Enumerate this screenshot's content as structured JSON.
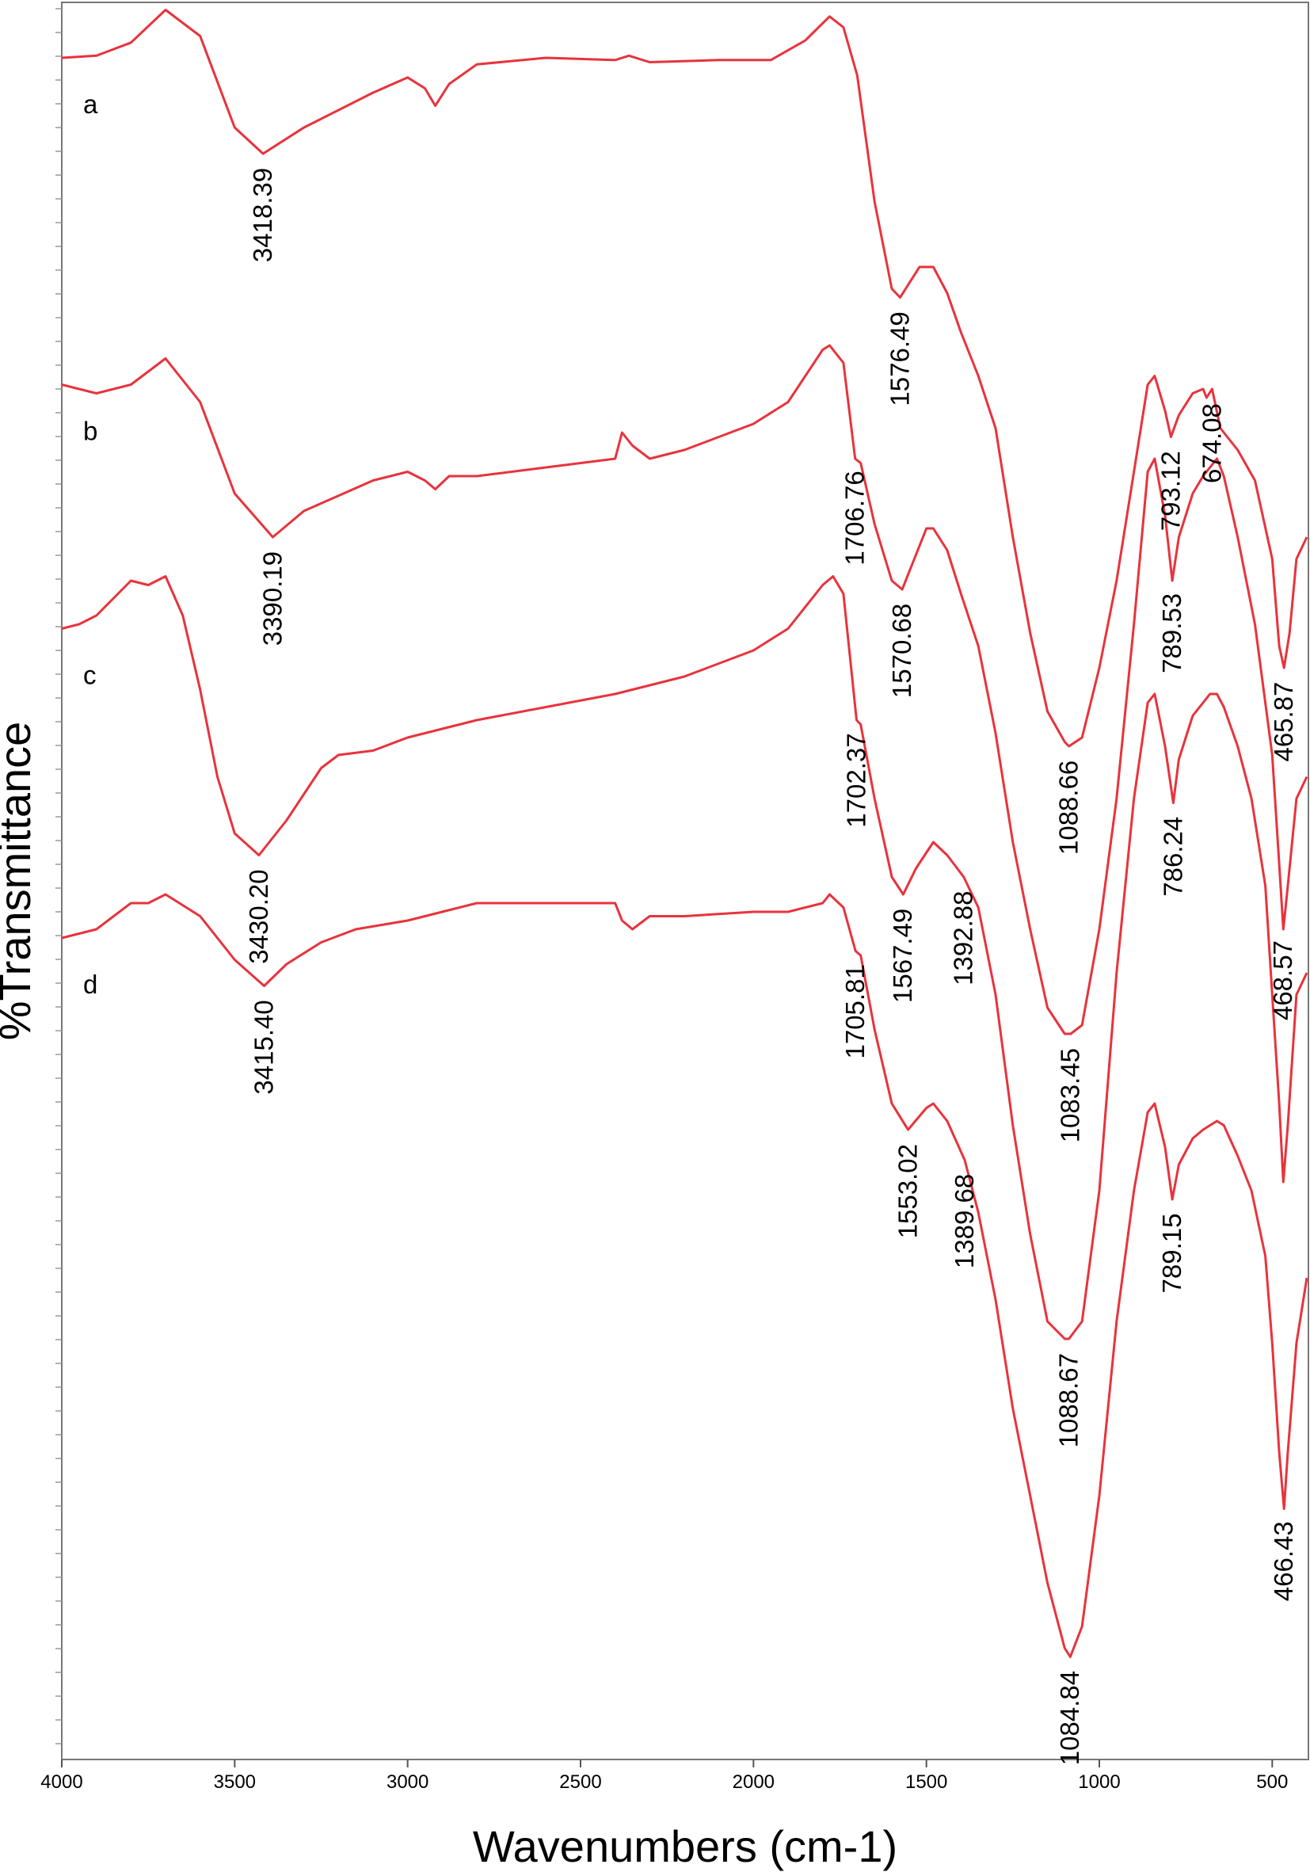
{
  "chart_data": {
    "type": "line",
    "xlabel": "Wavenumbers (cm-1)",
    "ylabel": "%Transmittance",
    "xlim": [
      4000,
      400
    ],
    "x_ticks": [
      4000,
      3500,
      3000,
      2500,
      2000,
      1500,
      1000,
      500
    ],
    "x_tick_labels": [
      "4000",
      "3500",
      "3000",
      "2500",
      "2000",
      "1500",
      "1000",
      "500"
    ],
    "grid": false,
    "line_color": "#e8333c",
    "series": [
      {
        "name": "a",
        "points": [
          [
            4000,
            1.0
          ],
          [
            3900,
            1.05
          ],
          [
            3800,
            1.35
          ],
          [
            3700,
            2.1
          ],
          [
            3600,
            1.5
          ],
          [
            3500,
            -0.6
          ],
          [
            3418,
            -1.2
          ],
          [
            3300,
            -0.6
          ],
          [
            3100,
            0.2
          ],
          [
            3000,
            0.55
          ],
          [
            2950,
            0.3
          ],
          [
            2920,
            -0.1
          ],
          [
            2880,
            0.4
          ],
          [
            2800,
            0.85
          ],
          [
            2600,
            1.0
          ],
          [
            2400,
            0.95
          ],
          [
            2360,
            1.05
          ],
          [
            2300,
            0.9
          ],
          [
            2100,
            0.95
          ],
          [
            1950,
            0.95
          ],
          [
            1850,
            1.4
          ],
          [
            1780,
            1.95
          ],
          [
            1740,
            1.7
          ],
          [
            1700,
            0.6
          ],
          [
            1650,
            -2.3
          ],
          [
            1600,
            -4.3
          ],
          [
            1576,
            -4.5
          ],
          [
            1520,
            -3.8
          ],
          [
            1480,
            -3.8
          ],
          [
            1440,
            -4.4
          ],
          [
            1400,
            -5.3
          ],
          [
            1350,
            -6.3
          ],
          [
            1300,
            -7.5
          ],
          [
            1250,
            -10.0
          ],
          [
            1200,
            -12.2
          ],
          [
            1150,
            -14.0
          ],
          [
            1100,
            -14.7
          ],
          [
            1088,
            -14.8
          ],
          [
            1050,
            -14.6
          ],
          [
            1000,
            -13.0
          ],
          [
            950,
            -11.0
          ],
          [
            900,
            -8.5
          ],
          [
            860,
            -6.5
          ],
          [
            840,
            -6.3
          ],
          [
            810,
            -7.1
          ],
          [
            793,
            -7.7
          ],
          [
            770,
            -7.2
          ],
          [
            730,
            -6.7
          ],
          [
            700,
            -6.6
          ],
          [
            690,
            -6.8
          ],
          [
            674,
            -6.6
          ],
          [
            650,
            -7.5
          ],
          [
            600,
            -8.0
          ],
          [
            550,
            -8.7
          ],
          [
            500,
            -10.5
          ],
          [
            480,
            -12.5
          ],
          [
            466,
            -13.0
          ],
          [
            450,
            -12.2
          ],
          [
            430,
            -10.5
          ],
          [
            400,
            -10.0
          ]
        ]
      },
      {
        "name": "b",
        "points": [
          [
            4000,
            -6.5
          ],
          [
            3950,
            -6.6
          ],
          [
            3900,
            -6.7
          ],
          [
            3800,
            -6.5
          ],
          [
            3700,
            -5.9
          ],
          [
            3600,
            -6.9
          ],
          [
            3500,
            -9.0
          ],
          [
            3390,
            -10.0
          ],
          [
            3300,
            -9.4
          ],
          [
            3100,
            -8.7
          ],
          [
            3000,
            -8.5
          ],
          [
            2950,
            -8.7
          ],
          [
            2920,
            -8.9
          ],
          [
            2880,
            -8.6
          ],
          [
            2800,
            -8.6
          ],
          [
            2600,
            -8.4
          ],
          [
            2400,
            -8.2
          ],
          [
            2380,
            -7.6
          ],
          [
            2350,
            -7.9
          ],
          [
            2300,
            -8.2
          ],
          [
            2200,
            -8.0
          ],
          [
            2000,
            -7.4
          ],
          [
            1900,
            -6.9
          ],
          [
            1800,
            -5.7
          ],
          [
            1780,
            -5.6
          ],
          [
            1740,
            -6.0
          ],
          [
            1706,
            -8.2
          ],
          [
            1690,
            -8.3
          ],
          [
            1650,
            -9.7
          ],
          [
            1600,
            -11.0
          ],
          [
            1570,
            -11.2
          ],
          [
            1500,
            -9.8
          ],
          [
            1480,
            -9.8
          ],
          [
            1440,
            -10.3
          ],
          [
            1400,
            -11.3
          ],
          [
            1350,
            -12.5
          ],
          [
            1300,
            -14.5
          ],
          [
            1250,
            -17.0
          ],
          [
            1200,
            -19.0
          ],
          [
            1150,
            -20.8
          ],
          [
            1100,
            -21.4
          ],
          [
            1083,
            -21.4
          ],
          [
            1050,
            -21.2
          ],
          [
            1000,
            -19.0
          ],
          [
            950,
            -16.0
          ],
          [
            900,
            -12.0
          ],
          [
            860,
            -8.5
          ],
          [
            840,
            -8.2
          ],
          [
            810,
            -9.5
          ],
          [
            789,
            -11.0
          ],
          [
            770,
            -10.0
          ],
          [
            730,
            -9.0
          ],
          [
            700,
            -8.6
          ],
          [
            680,
            -8.4
          ],
          [
            660,
            -8.2
          ],
          [
            640,
            -8.6
          ],
          [
            600,
            -10.0
          ],
          [
            550,
            -12.0
          ],
          [
            500,
            -15.0
          ],
          [
            480,
            -17.5
          ],
          [
            468,
            -19.0
          ],
          [
            455,
            -18.0
          ],
          [
            430,
            -16.0
          ],
          [
            400,
            -15.5
          ]
        ]
      },
      {
        "name": "c",
        "points": [
          [
            4000,
            -12.1
          ],
          [
            3950,
            -12.0
          ],
          [
            3900,
            -11.8
          ],
          [
            3850,
            -11.4
          ],
          [
            3800,
            -11.0
          ],
          [
            3750,
            -11.1
          ],
          [
            3700,
            -10.9
          ],
          [
            3650,
            -11.8
          ],
          [
            3600,
            -13.5
          ],
          [
            3550,
            -15.5
          ],
          [
            3500,
            -16.8
          ],
          [
            3430,
            -17.3
          ],
          [
            3350,
            -16.5
          ],
          [
            3250,
            -15.3
          ],
          [
            3200,
            -15.0
          ],
          [
            3100,
            -14.9
          ],
          [
            3000,
            -14.6
          ],
          [
            2950,
            -14.5
          ],
          [
            2900,
            -14.4
          ],
          [
            2800,
            -14.2
          ],
          [
            2600,
            -13.9
          ],
          [
            2400,
            -13.6
          ],
          [
            2200,
            -13.2
          ],
          [
            2000,
            -12.6
          ],
          [
            1900,
            -12.1
          ],
          [
            1800,
            -11.1
          ],
          [
            1770,
            -10.9
          ],
          [
            1740,
            -11.3
          ],
          [
            1702,
            -14.2
          ],
          [
            1690,
            -14.3
          ],
          [
            1650,
            -16.0
          ],
          [
            1600,
            -17.8
          ],
          [
            1567,
            -18.2
          ],
          [
            1530,
            -17.6
          ],
          [
            1480,
            -17.0
          ],
          [
            1440,
            -17.3
          ],
          [
            1392,
            -17.8
          ],
          [
            1350,
            -18.5
          ],
          [
            1300,
            -20.5
          ],
          [
            1250,
            -23.5
          ],
          [
            1200,
            -26.0
          ],
          [
            1150,
            -28.0
          ],
          [
            1100,
            -28.4
          ],
          [
            1088,
            -28.4
          ],
          [
            1050,
            -28.0
          ],
          [
            1000,
            -25.0
          ],
          [
            950,
            -20.0
          ],
          [
            900,
            -16.0
          ],
          [
            860,
            -13.8
          ],
          [
            840,
            -13.6
          ],
          [
            810,
            -14.8
          ],
          [
            786,
            -16.1
          ],
          [
            770,
            -15.1
          ],
          [
            730,
            -14.1
          ],
          [
            700,
            -13.8
          ],
          [
            680,
            -13.6
          ],
          [
            660,
            -13.6
          ],
          [
            640,
            -13.9
          ],
          [
            600,
            -14.8
          ],
          [
            560,
            -16.0
          ],
          [
            520,
            -18.0
          ],
          [
            500,
            -20.5
          ],
          [
            480,
            -23.0
          ],
          [
            468,
            -24.8
          ],
          [
            455,
            -23.5
          ],
          [
            430,
            -20.5
          ],
          [
            400,
            -20.0
          ]
        ]
      },
      {
        "name": "d",
        "points": [
          [
            4000,
            -19.2
          ],
          [
            3950,
            -19.1
          ],
          [
            3900,
            -19.0
          ],
          [
            3850,
            -18.7
          ],
          [
            3800,
            -18.4
          ],
          [
            3750,
            -18.4
          ],
          [
            3700,
            -18.2
          ],
          [
            3600,
            -18.7
          ],
          [
            3500,
            -19.7
          ],
          [
            3415,
            -20.3
          ],
          [
            3350,
            -19.8
          ],
          [
            3250,
            -19.3
          ],
          [
            3150,
            -19.0
          ],
          [
            3000,
            -18.8
          ],
          [
            2950,
            -18.7
          ],
          [
            2900,
            -18.6
          ],
          [
            2800,
            -18.4
          ],
          [
            2600,
            -18.4
          ],
          [
            2400,
            -18.4
          ],
          [
            2380,
            -18.8
          ],
          [
            2350,
            -19.0
          ],
          [
            2300,
            -18.7
          ],
          [
            2200,
            -18.7
          ],
          [
            2000,
            -18.6
          ],
          [
            1900,
            -18.6
          ],
          [
            1800,
            -18.4
          ],
          [
            1780,
            -18.2
          ],
          [
            1740,
            -18.5
          ],
          [
            1705,
            -19.5
          ],
          [
            1690,
            -19.6
          ],
          [
            1650,
            -21.3
          ],
          [
            1600,
            -23.0
          ],
          [
            1553,
            -23.6
          ],
          [
            1500,
            -23.1
          ],
          [
            1480,
            -23.0
          ],
          [
            1440,
            -23.4
          ],
          [
            1389,
            -24.3
          ],
          [
            1350,
            -25.5
          ],
          [
            1300,
            -27.5
          ],
          [
            1250,
            -30.0
          ],
          [
            1200,
            -32.0
          ],
          [
            1150,
            -34.0
          ],
          [
            1100,
            -35.5
          ],
          [
            1084,
            -35.7
          ],
          [
            1050,
            -35.0
          ],
          [
            1000,
            -32.0
          ],
          [
            950,
            -28.0
          ],
          [
            900,
            -25.0
          ],
          [
            860,
            -23.2
          ],
          [
            840,
            -23.0
          ],
          [
            810,
            -24.0
          ],
          [
            789,
            -25.2
          ],
          [
            770,
            -24.4
          ],
          [
            730,
            -23.8
          ],
          [
            700,
            -23.6
          ],
          [
            660,
            -23.4
          ],
          [
            640,
            -23.5
          ],
          [
            600,
            -24.2
          ],
          [
            560,
            -25.0
          ],
          [
            520,
            -26.5
          ],
          [
            500,
            -28.5
          ],
          [
            480,
            -31.0
          ],
          [
            466,
            -32.3
          ],
          [
            455,
            -31.0
          ],
          [
            430,
            -28.5
          ],
          [
            400,
            -27.0
          ]
        ]
      }
    ],
    "peak_labels": [
      {
        "series": "a",
        "x": 3418.39,
        "text": "3418.39"
      },
      {
        "series": "a",
        "x": 1576.49,
        "text": "1576.49"
      },
      {
        "series": "a",
        "x": 793.12,
        "text": "793.12"
      },
      {
        "series": "a",
        "x": 674.08,
        "text": "674.08"
      },
      {
        "series": "a",
        "x": 465.87,
        "text": "465.87"
      },
      {
        "series": "a",
        "x": 1088.66,
        "text": "1088.66"
      },
      {
        "series": "b",
        "x": 3390.19,
        "text": "3390.19"
      },
      {
        "series": "b",
        "x": 1706.76,
        "text": "1706.76"
      },
      {
        "series": "b",
        "x": 1570.68,
        "text": "1570.68"
      },
      {
        "series": "b",
        "x": 789.53,
        "text": "789.53"
      },
      {
        "series": "b",
        "x": 1083.45,
        "text": "1083.45"
      },
      {
        "series": "b",
        "x": 468.57,
        "text": "468.57"
      },
      {
        "series": "c",
        "x": 3430.2,
        "text": "3430.20"
      },
      {
        "series": "c",
        "x": 1702.37,
        "text": "1702.37"
      },
      {
        "series": "c",
        "x": 1567.49,
        "text": "1567.49"
      },
      {
        "series": "c",
        "x": 1392.88,
        "text": "1392.88"
      },
      {
        "series": "c",
        "x": 786.24,
        "text": "786.24"
      },
      {
        "series": "c",
        "x": 1088.67,
        "text": "1088.67"
      },
      {
        "series": "d",
        "x": 3415.4,
        "text": "3415.40"
      },
      {
        "series": "d",
        "x": 1705.81,
        "text": "1705.81"
      },
      {
        "series": "d",
        "x": 1553.02,
        "text": "1553.02"
      },
      {
        "series": "d",
        "x": 1389.68,
        "text": "1389.68"
      },
      {
        "series": "d",
        "x": 789.15,
        "text": "789.15"
      },
      {
        "series": "d",
        "x": 1084.84,
        "text": "1084.84"
      },
      {
        "series": "d",
        "x": 466.43,
        "text": "466.43"
      }
    ]
  }
}
